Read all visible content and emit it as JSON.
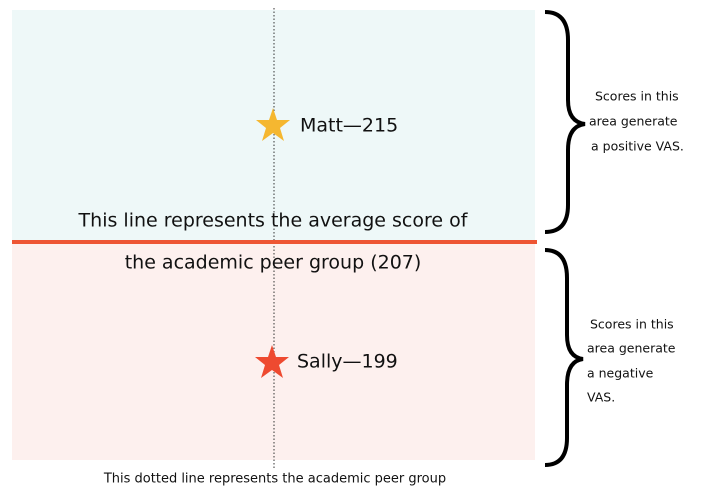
{
  "points": [
    {
      "label": "Matt—215"
    },
    {
      "label": "Sally—199"
    }
  ],
  "average_line": {
    "lines": [
      "This line represents the average score of",
      "the academic peer group (207)"
    ]
  },
  "dotted_line": {
    "label": "This dotted line represents the academic peer group"
  },
  "notes": [
    {
      "lines": [
        "Scores in this",
        "area generate",
        "a positive VAS."
      ]
    },
    {
      "lines": [
        "Scores in this",
        "area generate",
        "a negative",
        "VAS."
      ]
    }
  ]
}
